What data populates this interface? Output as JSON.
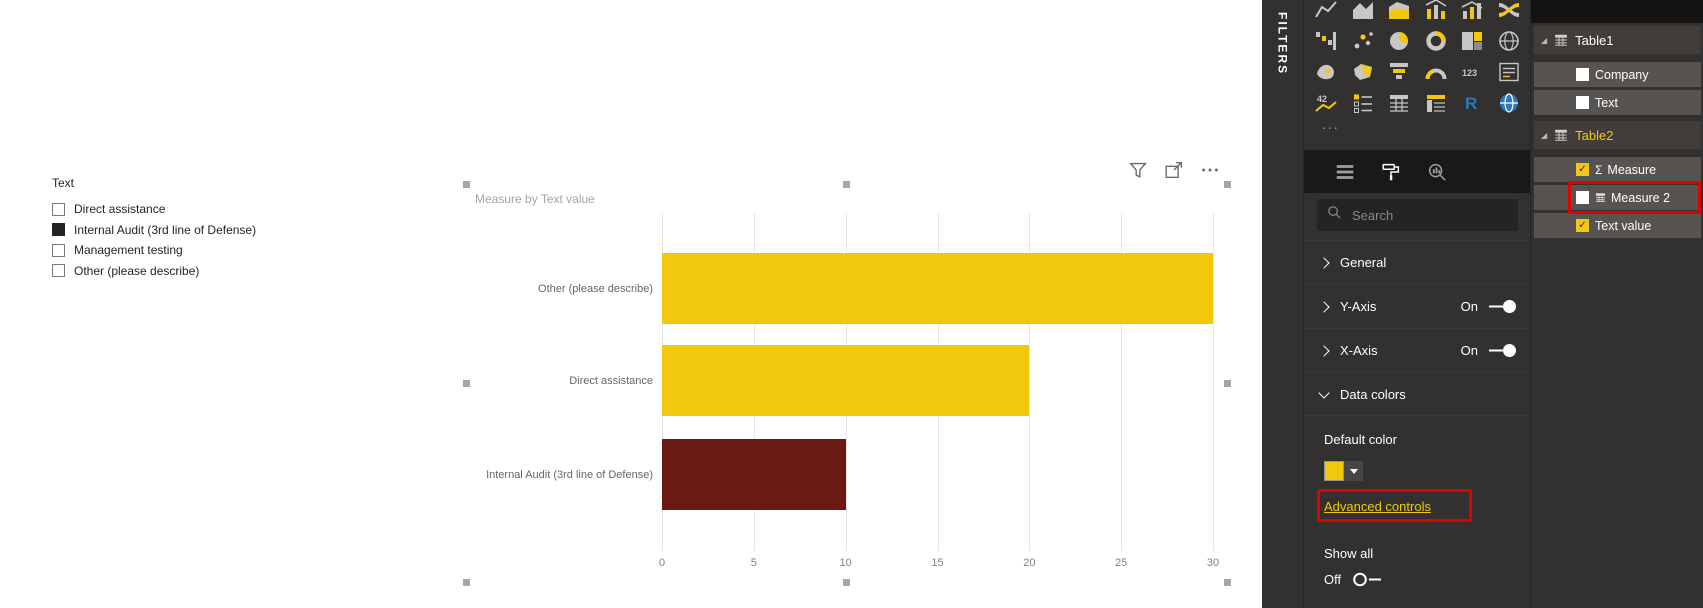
{
  "colors": {
    "accent_yellow": "#F2C80F",
    "annotation_red": "#e00000",
    "bar_dark_red": "#6B1A13",
    "pane_background": "#323130"
  },
  "canvas": {
    "slicer": {
      "title": "Text",
      "items": [
        {
          "label": "Direct assistance",
          "checked": false
        },
        {
          "label": "Internal Audit (3rd line of Defense)",
          "checked": true
        },
        {
          "label": "Management testing",
          "checked": false
        },
        {
          "label": "Other (please describe)",
          "checked": false
        }
      ]
    },
    "visual_header_icons": [
      "filter-icon",
      "focus-mode-icon",
      "more-options-icon"
    ]
  },
  "chart_data": {
    "type": "bar",
    "orientation": "horizontal",
    "title": "Measure by Text value",
    "categories": [
      "Other (please describe)",
      "Direct assistance",
      "Internal Audit (3rd line of Defense)"
    ],
    "values": [
      30,
      20,
      10
    ],
    "bar_colors": [
      "#F2C80F",
      "#F2C80F",
      "#6B1A13"
    ],
    "xlim": [
      0,
      30
    ],
    "x_ticks": [
      0,
      5,
      10,
      15,
      20,
      25,
      30
    ],
    "xlabel": "",
    "ylabel": "",
    "grid": true,
    "legend": "none"
  },
  "filters_pane": {
    "label": "FILTERS"
  },
  "visualizations_pane": {
    "gallery_icons": [
      "line-chart",
      "area-chart",
      "stacked-area-chart",
      "line-stacked-column-combo",
      "line-clustered-column-combo",
      "ribbon-chart",
      "waterfall-chart",
      "scatter-chart",
      "pie-chart",
      "donut-chart",
      "treemap",
      "map",
      "filled-map",
      "shape-map",
      "funnel",
      "gauge",
      "card",
      "multi-row-card",
      "kpi",
      "slicer-visual",
      "table",
      "matrix",
      "r-script",
      "arcgis-map"
    ],
    "more_label": "...",
    "tabs": [
      {
        "name": "fields-tab",
        "active": false
      },
      {
        "name": "format-tab",
        "active": true
      },
      {
        "name": "analytics-tab",
        "active": false
      }
    ],
    "search": {
      "placeholder": "Search",
      "icon": "search-icon"
    },
    "format_sections": [
      {
        "label": "General",
        "expanded": false
      },
      {
        "label": "Y-Axis",
        "expanded": false,
        "toggle_label": "On",
        "toggle_on": true
      },
      {
        "label": "X-Axis",
        "expanded": false,
        "toggle_label": "On",
        "toggle_on": true
      },
      {
        "label": "Data colors",
        "expanded": true
      }
    ],
    "data_colors": {
      "default_color_label": "Default color",
      "swatch_color": "#F2C80F",
      "advanced_controls_label": "Advanced controls",
      "show_all_label": "Show all",
      "show_all_toggle_label": "Off",
      "show_all_on": false
    }
  },
  "fields_pane": {
    "tables": [
      {
        "name": "Table1",
        "expanded": true,
        "highlighted": false,
        "fields": [
          {
            "name": "Company",
            "checked": false
          },
          {
            "name": "Text",
            "checked": false
          }
        ]
      },
      {
        "name": "Table2",
        "expanded": true,
        "highlighted": true,
        "fields": [
          {
            "name": "Measure",
            "checked": true,
            "icon": "sigma-icon"
          },
          {
            "name": "Measure 2",
            "checked": false,
            "icon": "table-icon",
            "annotated": true
          },
          {
            "name": "Text value",
            "checked": true
          }
        ]
      }
    ]
  },
  "annotations": {
    "boxes": [
      "measure-2-field",
      "advanced-controls-link"
    ]
  }
}
